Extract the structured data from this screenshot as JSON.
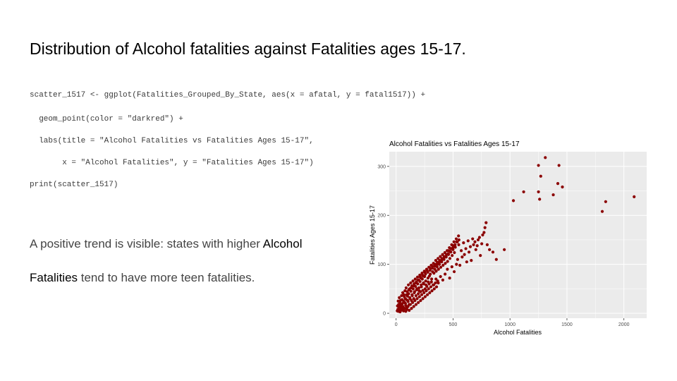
{
  "slide": {
    "title": "Distribution of Alcohol fatalities against Fatalities ages 15-17.",
    "code_lines": [
      "scatter_1517 <- ggplot(Fatalities_Grouped_By_State, aes(x = afatal, y = fatal1517)) +",
      "  geom_point(color = \"darkred\") +",
      "  labs(title = \"Alcohol Fatalities vs Fatalities Ages 15-17\",",
      "       x = \"Alcohol Fatalities\", y = \"Fatalities Ages 15-17\")",
      "print(scatter_1517)"
    ],
    "description": {
      "part1": "A positive trend is visible: states with higher ",
      "highlight": "Alcohol Fatalities",
      "part2": " tend to have more teen fatalities."
    }
  },
  "colors": {
    "point": "#8b0000",
    "panel": "#ebebeb",
    "grid": "#ffffff"
  },
  "chart_data": {
    "type": "scatter",
    "title": "Alcohol Fatalities vs Fatalities Ages 15-17",
    "xlabel": "Alcohol Fatalities",
    "ylabel": "Fatalities Ages 15-17",
    "xlim": [
      -60,
      2200
    ],
    "ylim": [
      -10,
      330
    ],
    "xticks": [
      0,
      500,
      1000,
      1500,
      2000
    ],
    "yticks": [
      0,
      100,
      200,
      300
    ],
    "grid": true,
    "series": [
      {
        "points": [
          [
            10,
            5
          ],
          [
            15,
            8
          ],
          [
            20,
            4
          ],
          [
            25,
            12
          ],
          [
            30,
            6
          ],
          [
            35,
            15
          ],
          [
            40,
            10
          ],
          [
            45,
            18
          ],
          [
            50,
            7
          ],
          [
            55,
            20
          ],
          [
            60,
            14
          ],
          [
            65,
            25
          ],
          [
            70,
            9
          ],
          [
            75,
            22
          ],
          [
            80,
            30
          ],
          [
            85,
            16
          ],
          [
            90,
            28
          ],
          [
            95,
            12
          ],
          [
            100,
            35
          ],
          [
            105,
            24
          ],
          [
            110,
            40
          ],
          [
            115,
            18
          ],
          [
            120,
            32
          ],
          [
            130,
            45
          ],
          [
            135,
            26
          ],
          [
            140,
            38
          ],
          [
            150,
            50
          ],
          [
            155,
            30
          ],
          [
            160,
            42
          ],
          [
            170,
            55
          ],
          [
            175,
            36
          ],
          [
            180,
            48
          ],
          [
            190,
            60
          ],
          [
            195,
            40
          ],
          [
            200,
            52
          ],
          [
            210,
            65
          ],
          [
            215,
            44
          ],
          [
            220,
            58
          ],
          [
            230,
            70
          ],
          [
            235,
            47
          ],
          [
            240,
            62
          ],
          [
            250,
            75
          ],
          [
            255,
            50
          ],
          [
            260,
            66
          ],
          [
            270,
            55
          ],
          [
            280,
            72
          ],
          [
            290,
            60
          ],
          [
            300,
            80
          ],
          [
            310,
            64
          ],
          [
            320,
            85
          ],
          [
            330,
            58
          ],
          [
            340,
            90
          ],
          [
            350,
            70
          ],
          [
            360,
            95
          ],
          [
            370,
            62
          ],
          [
            380,
            100
          ],
          [
            390,
            75
          ],
          [
            400,
            105
          ],
          [
            410,
            68
          ],
          [
            420,
            110
          ],
          [
            430,
            80
          ],
          [
            440,
            115
          ],
          [
            450,
            90
          ],
          [
            460,
            120
          ],
          [
            470,
            72
          ],
          [
            480,
            125
          ],
          [
            490,
            95
          ],
          [
            500,
            130
          ],
          [
            510,
            85
          ],
          [
            520,
            135
          ],
          [
            530,
            100
          ],
          [
            540,
            110
          ],
          [
            550,
            140
          ],
          [
            560,
            98
          ],
          [
            580,
            115
          ],
          [
            600,
            120
          ],
          [
            620,
            105
          ],
          [
            640,
            125
          ],
          [
            660,
            108
          ],
          [
            680,
            140
          ],
          [
            700,
            130
          ],
          [
            720,
            150
          ],
          [
            740,
            118
          ],
          [
            760,
            160
          ],
          [
            780,
            175
          ],
          [
            790,
            185
          ],
          [
            800,
            140
          ],
          [
            820,
            130
          ],
          [
            850,
            125
          ],
          [
            880,
            110
          ],
          [
            950,
            130
          ],
          [
            1030,
            230
          ],
          [
            1120,
            248
          ],
          [
            1250,
            302
          ],
          [
            1250,
            248
          ],
          [
            1260,
            233
          ],
          [
            1270,
            280
          ],
          [
            1310,
            318
          ],
          [
            1380,
            242
          ],
          [
            1420,
            265
          ],
          [
            1430,
            302
          ],
          [
            1460,
            258
          ],
          [
            1810,
            208
          ],
          [
            1840,
            228
          ],
          [
            2090,
            238
          ],
          [
            12,
            15
          ],
          [
            22,
            18
          ],
          [
            32,
            22
          ],
          [
            42,
            6
          ],
          [
            52,
            28
          ],
          [
            62,
            12
          ],
          [
            72,
            34
          ],
          [
            82,
            20
          ],
          [
            92,
            38
          ],
          [
            102,
            26
          ],
          [
            112,
            48
          ],
          [
            122,
            30
          ],
          [
            132,
            52
          ],
          [
            142,
            36
          ],
          [
            152,
            56
          ],
          [
            162,
            44
          ],
          [
            172,
            62
          ],
          [
            182,
            50
          ],
          [
            192,
            68
          ],
          [
            202,
            46
          ],
          [
            212,
            74
          ],
          [
            222,
            54
          ],
          [
            232,
            78
          ],
          [
            242,
            60
          ],
          [
            252,
            84
          ],
          [
            262,
            58
          ],
          [
            272,
            88
          ],
          [
            282,
            64
          ],
          [
            292,
            76
          ],
          [
            302,
            92
          ],
          [
            312,
            70
          ],
          [
            322,
            96
          ],
          [
            332,
            82
          ],
          [
            342,
            100
          ],
          [
            352,
            86
          ],
          [
            362,
            104
          ],
          [
            372,
            90
          ],
          [
            382,
            108
          ],
          [
            392,
            94
          ],
          [
            402,
            112
          ],
          [
            412,
            98
          ],
          [
            422,
            116
          ],
          [
            432,
            102
          ],
          [
            442,
            120
          ],
          [
            452,
            106
          ],
          [
            462,
            128
          ],
          [
            472,
            112
          ],
          [
            482,
            132
          ],
          [
            492,
            118
          ],
          [
            502,
            138
          ],
          [
            512,
            124
          ],
          [
            532,
            146
          ],
          [
            552,
            150
          ],
          [
            572,
            128
          ],
          [
            592,
            144
          ],
          [
            612,
            132
          ],
          [
            632,
            148
          ],
          [
            652,
            136
          ],
          [
            672,
            152
          ],
          [
            692,
            146
          ],
          [
            712,
            138
          ],
          [
            732,
            155
          ],
          [
            752,
            142
          ],
          [
            772,
            165
          ],
          [
            18,
            25
          ],
          [
            28,
            32
          ],
          [
            38,
            26
          ],
          [
            48,
            36
          ],
          [
            58,
            42
          ],
          [
            68,
            38
          ],
          [
            78,
            46
          ],
          [
            88,
            52
          ],
          [
            98,
            44
          ],
          [
            108,
            58
          ],
          [
            118,
            50
          ],
          [
            128,
            62
          ],
          [
            138,
            56
          ],
          [
            148,
            66
          ],
          [
            158,
            60
          ],
          [
            168,
            70
          ],
          [
            178,
            64
          ],
          [
            188,
            74
          ],
          [
            198,
            68
          ],
          [
            208,
            78
          ],
          [
            218,
            72
          ],
          [
            228,
            82
          ],
          [
            238,
            76
          ],
          [
            248,
            86
          ],
          [
            258,
            80
          ],
          [
            268,
            90
          ],
          [
            278,
            84
          ],
          [
            288,
            94
          ],
          [
            298,
            88
          ],
          [
            308,
            98
          ],
          [
            318,
            92
          ],
          [
            328,
            102
          ],
          [
            338,
            96
          ],
          [
            348,
            108
          ],
          [
            358,
            100
          ],
          [
            368,
            112
          ],
          [
            378,
            104
          ],
          [
            388,
            116
          ],
          [
            398,
            108
          ],
          [
            408,
            120
          ],
          [
            418,
            112
          ],
          [
            428,
            124
          ],
          [
            438,
            116
          ],
          [
            448,
            128
          ],
          [
            458,
            122
          ],
          [
            468,
            134
          ],
          [
            478,
            126
          ],
          [
            488,
            140
          ],
          [
            498,
            134
          ],
          [
            508,
            146
          ],
          [
            518,
            140
          ],
          [
            528,
            152
          ],
          [
            538,
            146
          ],
          [
            548,
            158
          ],
          [
            35,
            3
          ],
          [
            45,
            9
          ],
          [
            55,
            14
          ],
          [
            65,
            5
          ],
          [
            75,
            10
          ],
          [
            85,
            4
          ],
          [
            95,
            8
          ],
          [
            105,
            14
          ],
          [
            115,
            6
          ],
          [
            125,
            18
          ],
          [
            135,
            10
          ],
          [
            145,
            22
          ],
          [
            155,
            14
          ],
          [
            165,
            26
          ],
          [
            175,
            18
          ],
          [
            185,
            30
          ],
          [
            195,
            22
          ],
          [
            205,
            34
          ],
          [
            215,
            26
          ],
          [
            225,
            38
          ],
          [
            235,
            30
          ],
          [
            245,
            42
          ],
          [
            255,
            34
          ],
          [
            265,
            46
          ],
          [
            275,
            38
          ],
          [
            285,
            50
          ],
          [
            295,
            42
          ],
          [
            305,
            54
          ],
          [
            315,
            46
          ],
          [
            325,
            58
          ],
          [
            335,
            50
          ],
          [
            345,
            62
          ],
          [
            355,
            54
          ],
          [
            365,
            66
          ]
        ]
      }
    ]
  }
}
